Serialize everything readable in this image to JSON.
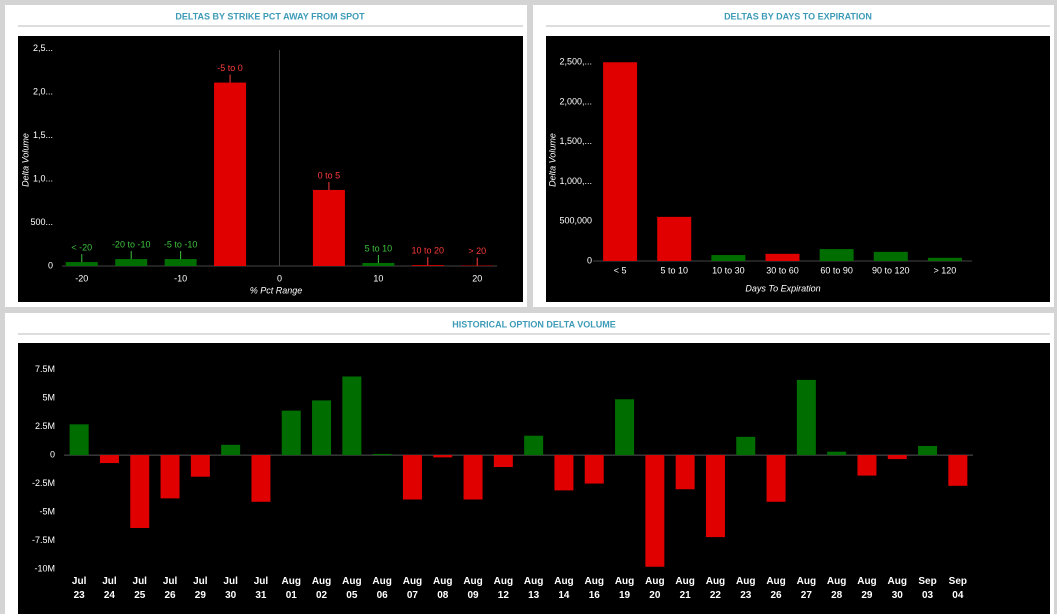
{
  "chart_data": [
    {
      "type": "bar",
      "title": "DELTAS BY STRIKE PCT AWAY FROM SPOT",
      "x_label": "% Pct Range",
      "y_label": "Delta Volume",
      "x": [
        -20,
        -15,
        -10,
        -5,
        5,
        10,
        15,
        20
      ],
      "labels": [
        "< -20",
        "-20 to -10",
        "-5 to -10",
        "-5 to 0",
        "0 to 5",
        "5 to 10",
        "10 to 20",
        "> 20"
      ],
      "values": [
        45000,
        80000,
        80000,
        2110000,
        875000,
        35000,
        10000,
        5000
      ],
      "colors": [
        "#006d00",
        "#006d00",
        "#006d00",
        "#e00000",
        "#e00000",
        "#006d00",
        "#e00000",
        "#e00000"
      ],
      "label_colors": [
        "#3ec43e",
        "#3ec43e",
        "#3ec43e",
        "#ff3b3b",
        "#ff3b3b",
        "#3ec43e",
        "#ff3b3b",
        "#ff3b3b"
      ],
      "vline_x": 0,
      "xlim": [
        -22,
        22
      ],
      "xticks": [
        -20,
        -10,
        0,
        10,
        20
      ],
      "ylim": [
        0,
        2600000
      ],
      "yticks": [
        0,
        {
          "value": 500000,
          "label": "500..."
        },
        {
          "value": 1000000,
          "label": "1,0..."
        },
        {
          "value": 1500000,
          "label": "1,5..."
        },
        {
          "value": 2000000,
          "label": "2,0..."
        },
        {
          "value": 2500000,
          "label": "2,5..."
        }
      ]
    },
    {
      "type": "bar",
      "title": "DELTAS BY DAYS TO EXPIRATION",
      "x_label": "Days To Expiration",
      "y_label": "Delta Volume",
      "categories": [
        "< 5",
        "5 to 10",
        "10 to 30",
        "30 to 60",
        "60 to 90",
        "90 to 120",
        "> 120"
      ],
      "values": [
        2500000,
        555000,
        75000,
        90000,
        150000,
        115000,
        40000
      ],
      "colors": [
        "#e00000",
        "#e00000",
        "#006d00",
        "#e00000",
        "#006d00",
        "#006d00",
        "#006d00"
      ],
      "ylim": [
        0,
        2780000
      ],
      "yticks": [
        0,
        {
          "value": 500000,
          "label": "500,000"
        },
        {
          "value": 1000000,
          "label": "1,000,..."
        },
        {
          "value": 1500000,
          "label": "1,500,..."
        },
        {
          "value": 2000000,
          "label": "2,000,..."
        },
        {
          "value": 2500000,
          "label": "2,500,..."
        }
      ]
    },
    {
      "type": "bar",
      "title": "HISTORICAL OPTION DELTA VOLUME",
      "categories": [
        "Jul 23",
        "Jul 24",
        "Jul 25",
        "Jul 26",
        "Jul 29",
        "Jul 30",
        "Jul 31",
        "Aug 01",
        "Aug 02",
        "Aug 05",
        "Aug 06",
        "Aug 07",
        "Aug 08",
        "Aug 09",
        "Aug 12",
        "Aug 13",
        "Aug 14",
        "Aug 16",
        "Aug 19",
        "Aug 20",
        "Aug 21",
        "Aug 22",
        "Aug 23",
        "Aug 26",
        "Aug 27",
        "Aug 28",
        "Aug 29",
        "Aug 30",
        "Sep 03",
        "Sep 04"
      ],
      "values": [
        2700000,
        -700000,
        -6400000,
        -3800000,
        -1900000,
        900000,
        -4100000,
        3900000,
        4800000,
        6900000,
        100000,
        -3900000,
        -200000,
        -3900000,
        -1050000,
        1700000,
        -3100000,
        -2500000,
        4900000,
        -9800000,
        -3000000,
        -7200000,
        1600000,
        -4100000,
        6600000,
        300000,
        -1800000,
        -350000,
        800000,
        -2700000
      ],
      "positive_color": "#006d00",
      "negative_color": "#e00000",
      "ylim": [
        -10000000,
        9400000
      ],
      "yticks": [
        {
          "value": 7500000,
          "label": "7.5M"
        },
        {
          "value": 5000000,
          "label": "5M"
        },
        {
          "value": 2500000,
          "label": "2.5M"
        },
        0,
        {
          "value": -2500000,
          "label": "-2.5M"
        },
        {
          "value": -5000000,
          "label": "-5M"
        },
        {
          "value": -7500000,
          "label": "-7.5M"
        },
        {
          "value": -10000000,
          "label": "-10M"
        }
      ]
    }
  ]
}
